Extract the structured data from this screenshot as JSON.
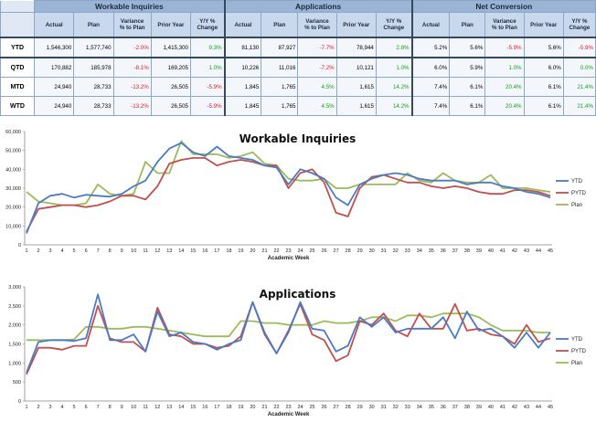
{
  "table": {
    "groups": [
      "Workable Inquiries",
      "Applications",
      "Net Conversion"
    ],
    "subheaders": [
      [
        "Actual"
      ],
      [
        "Plan"
      ],
      [
        "Variance",
        "% to Plan"
      ],
      [
        "Prior Year"
      ],
      [
        "Y/Y %",
        "Change"
      ],
      [
        "Actual"
      ],
      [
        "Plan"
      ],
      [
        "Variance",
        "% to Plan"
      ],
      [
        "Prior Year"
      ],
      [
        "Y/Y %",
        "Change"
      ],
      [
        "Actual"
      ],
      [
        "Plan"
      ],
      [
        "Variance",
        "% to Plan"
      ],
      [
        "Prior Year"
      ],
      [
        "Y/Y %",
        "Change"
      ]
    ],
    "rows": [
      {
        "label": "YTD",
        "cells": [
          "1,546,300",
          "1,577,740",
          "-2.0%",
          "1,415,300",
          "9.3%",
          "81,130",
          "87,927",
          "-7.7%",
          "78,944",
          "2.8%",
          "5.2%",
          "5.6%",
          "-5.9%",
          "5.6%",
          "-5.9%"
        ]
      },
      {
        "label": "QTD",
        "cells": [
          "170,882",
          "185,978",
          "-8.1%",
          "169,205",
          "1.0%",
          "10,226",
          "11,016",
          "-7.2%",
          "10,121",
          "1.0%",
          "6.0%",
          "5.9%",
          "1.0%",
          "6.0%",
          "0.0%"
        ]
      },
      {
        "label": "MTD",
        "cells": [
          "24,940",
          "28,733",
          "-13.2%",
          "26,505",
          "-5.9%",
          "1,845",
          "1,765",
          "4.5%",
          "1,615",
          "14.2%",
          "7.4%",
          "6.1%",
          "20.4%",
          "6.1%",
          "21.4%"
        ]
      },
      {
        "label": "WTD",
        "cells": [
          "24,940",
          "28,733",
          "-13.2%",
          "26,505",
          "-5.9%",
          "1,845",
          "1,765",
          "4.5%",
          "1,615",
          "14.2%",
          "7.4%",
          "6.1%",
          "20.4%",
          "6.1%",
          "21.4%"
        ]
      }
    ],
    "colors": {
      "header": "#9ab4d6",
      "subheader": "#c9d8ec",
      "negative": "#e0182a",
      "positive": "#16a016"
    }
  },
  "chart_data": [
    {
      "type": "line",
      "title": "Workable Inquiries",
      "xlabel": "Academic Week",
      "ylabel": "",
      "ylim": [
        0,
        60000
      ],
      "yticks": [
        "0",
        "10,000",
        "20,000",
        "30,000",
        "40,000",
        "50,000",
        "60,000"
      ],
      "x": [
        1,
        2,
        3,
        4,
        5,
        6,
        7,
        8,
        9,
        10,
        11,
        12,
        13,
        14,
        15,
        16,
        17,
        18,
        19,
        20,
        21,
        22,
        23,
        24,
        25,
        26,
        27,
        28,
        29,
        30,
        31,
        32,
        33,
        34,
        35,
        36,
        37,
        38,
        39,
        40,
        41,
        42,
        43,
        44,
        45
      ],
      "legend_position": "right",
      "series": [
        {
          "name": "YTD",
          "color": "#4a7bc4",
          "values": [
            6000,
            22000,
            26000,
            27000,
            25000,
            26500,
            26000,
            25500,
            27000,
            31000,
            34000,
            44000,
            51000,
            54000,
            49000,
            47000,
            52000,
            47000,
            46000,
            45000,
            42000,
            41000,
            32000,
            40000,
            38000,
            35000,
            25000,
            21000,
            32000,
            35000,
            37000,
            38000,
            37000,
            35000,
            34000,
            34000,
            34000,
            32000,
            33000,
            33000,
            31000,
            30000,
            28000,
            27000,
            25000
          ]
        },
        {
          "name": "PYTD",
          "color": "#c0504d",
          "values": [
            7000,
            19000,
            20000,
            21000,
            21000,
            20000,
            21000,
            23000,
            26000,
            26000,
            24000,
            31000,
            43000,
            45000,
            46000,
            46000,
            42000,
            44000,
            45000,
            44000,
            42000,
            42000,
            30000,
            38000,
            40000,
            33000,
            17000,
            15000,
            30000,
            36000,
            37000,
            35000,
            33000,
            33000,
            31000,
            30000,
            31000,
            30000,
            28000,
            27000,
            27000,
            29000,
            29000,
            28000,
            26000
          ]
        },
        {
          "name": "Plan",
          "color": "#9bbb59",
          "values": [
            28000,
            23000,
            22000,
            21000,
            21000,
            22000,
            32000,
            27000,
            26000,
            27000,
            44000,
            38000,
            38000,
            55000,
            48000,
            48000,
            48000,
            46000,
            47000,
            49000,
            43000,
            42000,
            35000,
            34000,
            34000,
            35000,
            30000,
            30000,
            32000,
            32000,
            32000,
            32000,
            38000,
            34000,
            33000,
            38000,
            34000,
            33000,
            33000,
            37000,
            30000,
            30000,
            30000,
            29000,
            28000
          ]
        }
      ]
    },
    {
      "type": "line",
      "title": "Applications",
      "xlabel": "Academic Week",
      "ylabel": "",
      "ylim": [
        0,
        3000
      ],
      "yticks": [
        "0",
        "500",
        "1,000",
        "1,500",
        "2,000",
        "2,500",
        "3,000"
      ],
      "x": [
        1,
        2,
        3,
        4,
        5,
        6,
        7,
        8,
        9,
        10,
        11,
        12,
        13,
        14,
        15,
        16,
        17,
        18,
        19,
        20,
        21,
        22,
        23,
        24,
        25,
        26,
        27,
        28,
        29,
        30,
        31,
        32,
        33,
        34,
        35,
        36,
        37,
        38,
        39,
        40,
        41,
        42,
        43,
        44,
        45
      ],
      "legend_position": "right",
      "series": [
        {
          "name": "YTD",
          "color": "#4a7bc4",
          "values": [
            750,
            1550,
            1600,
            1600,
            1580,
            1650,
            2800,
            1600,
            1600,
            1750,
            1300,
            2350,
            1700,
            1800,
            1550,
            1500,
            1350,
            1500,
            1600,
            2600,
            1800,
            1250,
            1800,
            2600,
            1900,
            1850,
            1300,
            1450,
            2200,
            1950,
            2200,
            1800,
            1900,
            1900,
            1900,
            2200,
            1650,
            2350,
            1850,
            1900,
            1700,
            1400,
            1800,
            1400,
            1800
          ]
        },
        {
          "name": "PYTD",
          "color": "#c0504d",
          "values": [
            700,
            1400,
            1400,
            1350,
            1450,
            1450,
            2500,
            1650,
            1550,
            1550,
            1300,
            2450,
            1750,
            1700,
            1500,
            1500,
            1400,
            1450,
            1700,
            2600,
            1750,
            1250,
            1850,
            2550,
            1750,
            1600,
            1050,
            1200,
            2100,
            2000,
            2300,
            1850,
            1700,
            2300,
            1900,
            1900,
            2550,
            1850,
            1900,
            1750,
            1700,
            1500,
            2000,
            1550,
            1650
          ]
        },
        {
          "name": "Plan",
          "color": "#9bbb59",
          "values": [
            1600,
            1600,
            1600,
            1600,
            1620,
            1950,
            1950,
            1900,
            1900,
            1950,
            1950,
            1900,
            1850,
            1800,
            1750,
            1700,
            1700,
            1700,
            2100,
            2100,
            2050,
            2050,
            2000,
            2000,
            2000,
            2100,
            2050,
            2050,
            2100,
            2200,
            2200,
            2100,
            2250,
            2250,
            2200,
            2300,
            2300,
            2300,
            2200,
            2000,
            1850,
            1850,
            1850,
            1800,
            1800
          ]
        }
      ]
    }
  ]
}
